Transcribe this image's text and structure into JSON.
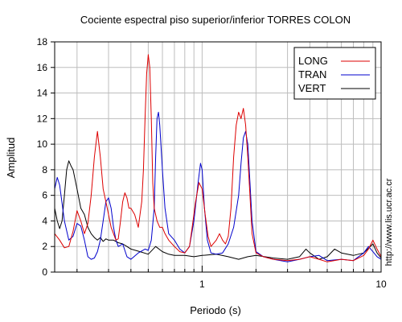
{
  "chart_data": {
    "type": "line",
    "title": "Cociente espectral piso superior/inferior  TORRES COLON",
    "xlabel": "Periodo (s)",
    "ylabel": "Amplitud",
    "xscale": "log",
    "xlim": [
      0.15,
      10
    ],
    "ylim": [
      0,
      18
    ],
    "yticks": [
      0,
      2,
      4,
      6,
      8,
      10,
      12,
      14,
      16,
      18
    ],
    "xtick_labels": [
      {
        "value": 1,
        "label": "1"
      },
      {
        "value": 10,
        "label": "10"
      }
    ],
    "grid": true,
    "legend_position": "top-right",
    "colors": {
      "LONG": "#dd0000",
      "TRAN": "#0000cc",
      "VERT": "#000000"
    },
    "series": [
      {
        "name": "LONG",
        "points": [
          [
            0.15,
            3.0
          ],
          [
            0.16,
            2.5
          ],
          [
            0.17,
            1.9
          ],
          [
            0.18,
            2.0
          ],
          [
            0.19,
            3.2
          ],
          [
            0.2,
            4.8
          ],
          [
            0.21,
            4.0
          ],
          [
            0.22,
            3.0
          ],
          [
            0.23,
            3.8
          ],
          [
            0.24,
            6.0
          ],
          [
            0.25,
            9.0
          ],
          [
            0.26,
            11.0
          ],
          [
            0.27,
            9.0
          ],
          [
            0.28,
            6.5
          ],
          [
            0.29,
            5.5
          ],
          [
            0.3,
            4.5
          ],
          [
            0.31,
            3.5
          ],
          [
            0.32,
            3.0
          ],
          [
            0.33,
            2.5
          ],
          [
            0.34,
            2.6
          ],
          [
            0.35,
            4.0
          ],
          [
            0.36,
            5.5
          ],
          [
            0.37,
            6.2
          ],
          [
            0.38,
            5.8
          ],
          [
            0.39,
            5.0
          ],
          [
            0.4,
            5.0
          ],
          [
            0.42,
            4.5
          ],
          [
            0.44,
            3.5
          ],
          [
            0.46,
            5.5
          ],
          [
            0.47,
            8.0
          ],
          [
            0.48,
            12.0
          ],
          [
            0.49,
            15.5
          ],
          [
            0.5,
            17.0
          ],
          [
            0.51,
            16.0
          ],
          [
            0.52,
            12.0
          ],
          [
            0.53,
            7.0
          ],
          [
            0.54,
            5.0
          ],
          [
            0.56,
            4.0
          ],
          [
            0.58,
            3.5
          ],
          [
            0.6,
            3.5
          ],
          [
            0.62,
            3.0
          ],
          [
            0.65,
            2.5
          ],
          [
            0.7,
            2.0
          ],
          [
            0.75,
            1.6
          ],
          [
            0.8,
            1.5
          ],
          [
            0.85,
            2.0
          ],
          [
            0.88,
            3.5
          ],
          [
            0.92,
            5.5
          ],
          [
            0.96,
            7.0
          ],
          [
            1.0,
            6.5
          ],
          [
            1.04,
            4.5
          ],
          [
            1.08,
            2.8
          ],
          [
            1.12,
            2.0
          ],
          [
            1.2,
            2.5
          ],
          [
            1.25,
            3.0
          ],
          [
            1.3,
            2.5
          ],
          [
            1.35,
            2.2
          ],
          [
            1.4,
            2.8
          ],
          [
            1.45,
            5.0
          ],
          [
            1.5,
            9.0
          ],
          [
            1.55,
            11.5
          ],
          [
            1.6,
            12.5
          ],
          [
            1.65,
            12.0
          ],
          [
            1.7,
            12.8
          ],
          [
            1.75,
            11.5
          ],
          [
            1.8,
            9.0
          ],
          [
            1.85,
            6.0
          ],
          [
            1.9,
            3.0
          ],
          [
            2.0,
            1.5
          ],
          [
            2.2,
            1.2
          ],
          [
            2.5,
            1.0
          ],
          [
            3.0,
            0.9
          ],
          [
            3.5,
            1.0
          ],
          [
            4.0,
            1.2
          ],
          [
            4.5,
            1.0
          ],
          [
            5.0,
            0.8
          ],
          [
            6.0,
            1.0
          ],
          [
            7.0,
            0.9
          ],
          [
            8.0,
            1.3
          ],
          [
            8.5,
            1.8
          ],
          [
            9.0,
            2.5
          ],
          [
            9.5,
            1.8
          ],
          [
            10.0,
            1.2
          ]
        ]
      },
      {
        "name": "TRAN",
        "points": [
          [
            0.15,
            6.5
          ],
          [
            0.155,
            7.4
          ],
          [
            0.16,
            6.8
          ],
          [
            0.17,
            4.0
          ],
          [
            0.18,
            2.5
          ],
          [
            0.19,
            2.8
          ],
          [
            0.2,
            3.8
          ],
          [
            0.21,
            3.6
          ],
          [
            0.22,
            2.5
          ],
          [
            0.23,
            1.2
          ],
          [
            0.24,
            1.0
          ],
          [
            0.25,
            1.1
          ],
          [
            0.26,
            1.6
          ],
          [
            0.27,
            2.5
          ],
          [
            0.28,
            4.0
          ],
          [
            0.29,
            5.5
          ],
          [
            0.3,
            5.8
          ],
          [
            0.31,
            5.0
          ],
          [
            0.32,
            3.5
          ],
          [
            0.33,
            2.5
          ],
          [
            0.34,
            2.0
          ],
          [
            0.36,
            2.2
          ],
          [
            0.38,
            1.2
          ],
          [
            0.4,
            1.0
          ],
          [
            0.44,
            1.5
          ],
          [
            0.48,
            1.8
          ],
          [
            0.5,
            1.7
          ],
          [
            0.52,
            2.5
          ],
          [
            0.54,
            5.0
          ],
          [
            0.55,
            9.0
          ],
          [
            0.56,
            12.0
          ],
          [
            0.57,
            12.5
          ],
          [
            0.58,
            11.5
          ],
          [
            0.6,
            8.0
          ],
          [
            0.62,
            5.0
          ],
          [
            0.65,
            3.0
          ],
          [
            0.7,
            2.5
          ],
          [
            0.75,
            1.8
          ],
          [
            0.8,
            1.5
          ],
          [
            0.85,
            2.0
          ],
          [
            0.9,
            4.0
          ],
          [
            0.95,
            7.0
          ],
          [
            0.98,
            8.5
          ],
          [
            1.0,
            8.0
          ],
          [
            1.03,
            5.0
          ],
          [
            1.07,
            2.5
          ],
          [
            1.12,
            1.5
          ],
          [
            1.2,
            1.4
          ],
          [
            1.3,
            1.5
          ],
          [
            1.4,
            2.2
          ],
          [
            1.5,
            3.5
          ],
          [
            1.6,
            6.0
          ],
          [
            1.65,
            8.5
          ],
          [
            1.7,
            10.5
          ],
          [
            1.75,
            11.0
          ],
          [
            1.8,
            10.0
          ],
          [
            1.85,
            7.0
          ],
          [
            1.9,
            4.0
          ],
          [
            2.0,
            1.6
          ],
          [
            2.2,
            1.2
          ],
          [
            2.5,
            1.0
          ],
          [
            3.0,
            0.8
          ],
          [
            3.5,
            1.0
          ],
          [
            4.0,
            1.2
          ],
          [
            4.5,
            1.3
          ],
          [
            5.0,
            0.9
          ],
          [
            6.0,
            1.0
          ],
          [
            7.0,
            0.9
          ],
          [
            8.0,
            1.5
          ],
          [
            8.5,
            2.0
          ],
          [
            9.0,
            1.6
          ],
          [
            9.5,
            1.2
          ],
          [
            10.0,
            1.0
          ]
        ]
      },
      {
        "name": "VERT",
        "points": [
          [
            0.15,
            5.0
          ],
          [
            0.155,
            4.0
          ],
          [
            0.16,
            3.4
          ],
          [
            0.165,
            4.0
          ],
          [
            0.17,
            6.0
          ],
          [
            0.175,
            8.0
          ],
          [
            0.18,
            8.7
          ],
          [
            0.185,
            8.3
          ],
          [
            0.19,
            8.0
          ],
          [
            0.2,
            6.5
          ],
          [
            0.21,
            5.0
          ],
          [
            0.22,
            4.5
          ],
          [
            0.23,
            3.5
          ],
          [
            0.24,
            3.0
          ],
          [
            0.25,
            2.7
          ],
          [
            0.26,
            2.5
          ],
          [
            0.27,
            2.7
          ],
          [
            0.28,
            2.4
          ],
          [
            0.29,
            2.6
          ],
          [
            0.3,
            2.5
          ],
          [
            0.32,
            2.5
          ],
          [
            0.34,
            2.3
          ],
          [
            0.36,
            2.2
          ],
          [
            0.38,
            2.0
          ],
          [
            0.4,
            1.8
          ],
          [
            0.45,
            1.6
          ],
          [
            0.5,
            1.4
          ],
          [
            0.55,
            2.0
          ],
          [
            0.6,
            1.6
          ],
          [
            0.65,
            1.4
          ],
          [
            0.7,
            1.3
          ],
          [
            0.8,
            1.3
          ],
          [
            0.9,
            1.2
          ],
          [
            1.0,
            1.3
          ],
          [
            1.2,
            1.4
          ],
          [
            1.4,
            1.2
          ],
          [
            1.6,
            1.0
          ],
          [
            1.8,
            1.2
          ],
          [
            2.0,
            1.3
          ],
          [
            2.5,
            1.1
          ],
          [
            3.0,
            1.0
          ],
          [
            3.5,
            1.2
          ],
          [
            3.8,
            1.8
          ],
          [
            4.0,
            1.5
          ],
          [
            4.5,
            1.0
          ],
          [
            5.0,
            1.2
          ],
          [
            5.5,
            1.8
          ],
          [
            6.0,
            1.5
          ],
          [
            7.0,
            1.3
          ],
          [
            8.0,
            1.5
          ],
          [
            9.0,
            2.2
          ],
          [
            9.5,
            1.5
          ],
          [
            10.0,
            1.1
          ]
        ]
      }
    ]
  },
  "side_note": "http://www.lis.ucr.ac.cr"
}
